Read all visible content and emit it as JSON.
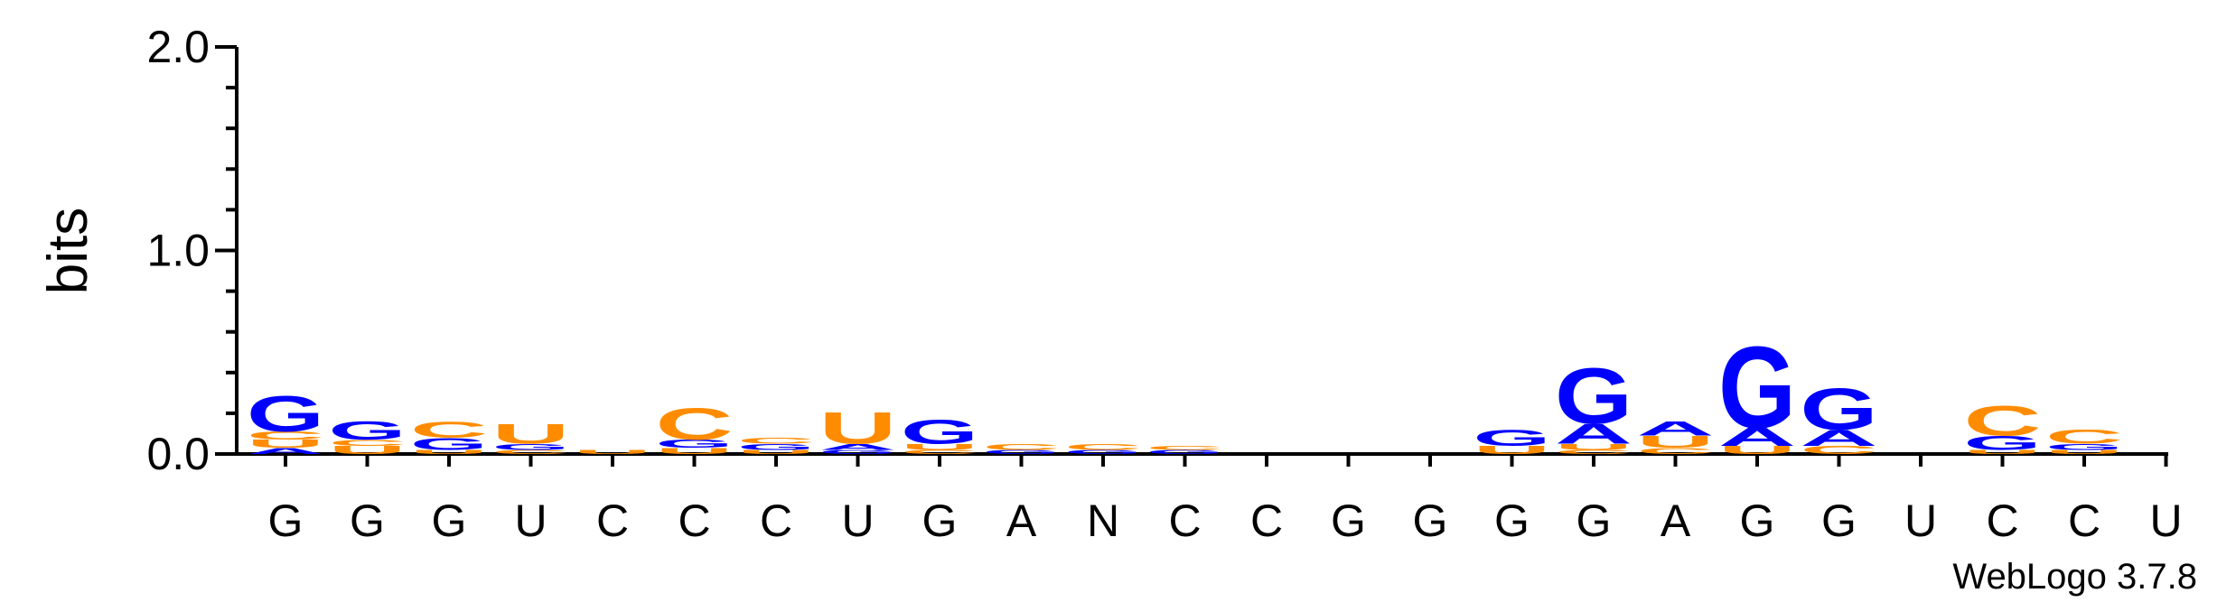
{
  "colors": {
    "purine_blue": "#0000ff",
    "pyrimidine_orange": "#ff8c00",
    "axis": "#000000"
  },
  "footer": "WebLogo 3.7.8",
  "chart_data": {
    "type": "sequence-logo",
    "ylabel": "bits",
    "ylim": [
      0,
      2
    ],
    "yticks": [
      "0.0",
      "1.0",
      "2.0"
    ],
    "positions": [
      "G",
      "G",
      "G",
      "U",
      "C",
      "C",
      "C",
      "U",
      "G",
      "A",
      "N",
      "C",
      "C",
      "G",
      "G",
      "G",
      "G",
      "A",
      "G",
      "G",
      "U",
      "C",
      "C",
      "U"
    ],
    "stacks": [
      [
        {
          "l": "A",
          "h": 0.03
        },
        {
          "l": "U",
          "h": 0.04
        },
        {
          "l": "C",
          "h": 0.04
        },
        {
          "l": "G",
          "h": 0.18
        }
      ],
      [
        {
          "l": "U",
          "h": 0.04
        },
        {
          "l": "C",
          "h": 0.03
        },
        {
          "l": "G",
          "h": 0.09
        }
      ],
      [
        {
          "l": "U",
          "h": 0.02
        },
        {
          "l": "G",
          "h": 0.06
        },
        {
          "l": "C",
          "h": 0.08
        }
      ],
      [
        {
          "l": "C",
          "h": 0.02
        },
        {
          "l": "G",
          "h": 0.03
        },
        {
          "l": "U",
          "h": 0.1
        }
      ],
      [
        {
          "l": "U",
          "h": 0.02
        }
      ],
      [
        {
          "l": "U",
          "h": 0.03
        },
        {
          "l": "G",
          "h": 0.04
        },
        {
          "l": "C",
          "h": 0.16
        }
      ],
      [
        {
          "l": "U",
          "h": 0.02
        },
        {
          "l": "G",
          "h": 0.03
        },
        {
          "l": "C",
          "h": 0.03
        }
      ],
      [
        {
          "l": "G",
          "h": 0.02
        },
        {
          "l": "A",
          "h": 0.03
        },
        {
          "l": "U",
          "h": 0.16
        }
      ],
      [
        {
          "l": "C",
          "h": 0.02
        },
        {
          "l": "U",
          "h": 0.03
        },
        {
          "l": "G",
          "h": 0.12
        }
      ],
      [
        {
          "l": "G",
          "h": 0.02
        },
        {
          "l": "C",
          "h": 0.03
        }
      ],
      [
        {
          "l": "G",
          "h": 0.02
        },
        {
          "l": "C",
          "h": 0.03
        }
      ],
      [
        {
          "l": "G",
          "h": 0.02
        },
        {
          "l": "C",
          "h": 0.02
        }
      ],
      [],
      [],
      [],
      [
        {
          "l": "U",
          "h": 0.04
        },
        {
          "l": "G",
          "h": 0.08
        }
      ],
      [
        {
          "l": "C",
          "h": 0.02
        },
        {
          "l": "U",
          "h": 0.03
        },
        {
          "l": "A",
          "h": 0.1
        },
        {
          "l": "G",
          "h": 0.28
        }
      ],
      [
        {
          "l": "C",
          "h": 0.03
        },
        {
          "l": "U",
          "h": 0.06
        },
        {
          "l": "A",
          "h": 0.07
        }
      ],
      [
        {
          "l": "U",
          "h": 0.04
        },
        {
          "l": "A",
          "h": 0.09
        },
        {
          "l": "G",
          "h": 0.41
        }
      ],
      [
        {
          "l": "C",
          "h": 0.04
        },
        {
          "l": "A",
          "h": 0.08
        },
        {
          "l": "G",
          "h": 0.21
        }
      ],
      [],
      [
        {
          "l": "U",
          "h": 0.02
        },
        {
          "l": "G",
          "h": 0.07
        },
        {
          "l": "C",
          "h": 0.15
        }
      ],
      [
        {
          "l": "U",
          "h": 0.02
        },
        {
          "l": "G",
          "h": 0.03
        },
        {
          "l": "C",
          "h": 0.07
        }
      ],
      []
    ]
  }
}
